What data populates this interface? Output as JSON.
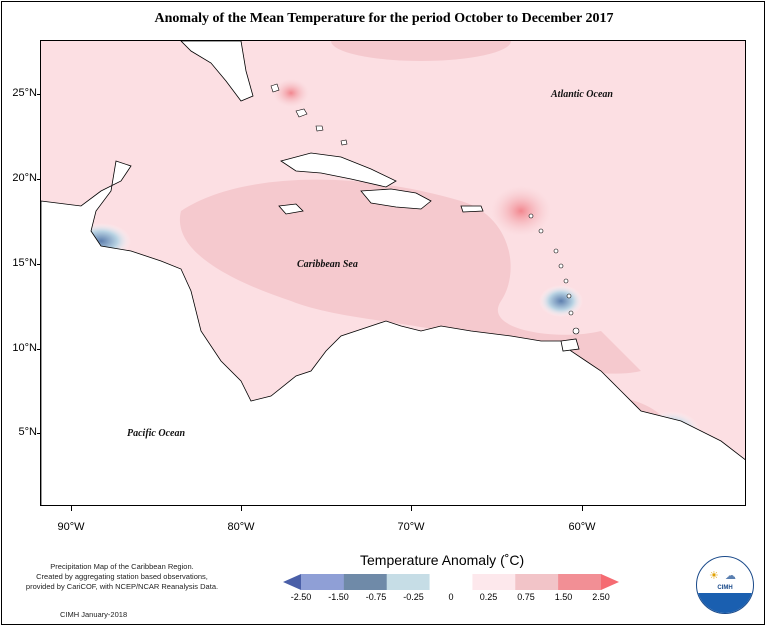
{
  "title": "Anomaly of the Mean Temperature for the period October to December 2017",
  "axes": {
    "lat_labels": [
      "25°N",
      "20°N",
      "15°N",
      "10°N",
      "5°N"
    ],
    "lon_labels": [
      "90°W",
      "80°W",
      "70°W",
      "60°W"
    ]
  },
  "map_labels": {
    "atlantic": "Atlantic Ocean",
    "caribbean": "Caribbean Sea",
    "pacific": "Pacific Ocean"
  },
  "credits": {
    "line1": "Precipitation Map of the Caribbean Region.",
    "line2": "Created by aggregating station based observations,",
    "line3": "provided by CariCOF, with NCEP/NCAR Reanalysis Data.",
    "date": "CIMH January-2018"
  },
  "legend": {
    "title": "Temperature Anomaly (˚C)",
    "labels": [
      "-2.50",
      "-1.50",
      "-0.75",
      "-0.25",
      "0",
      "0.25",
      "0.75",
      "1.50",
      "2.50"
    ],
    "colors": [
      "#4a5fa8",
      "#8f9fd6",
      "#6f8aa8",
      "#c6dde6",
      "#ffffff",
      "#fde8ec",
      "#f2c4c8",
      "#f28f95",
      "#f56b72"
    ]
  },
  "logo": {
    "text": "CIMH"
  },
  "colors": {
    "sea_base": "#fcdfe3",
    "warm_zone": "#f5c9ce",
    "hot_spot": "#f39097",
    "cool_spot": "#7f9cc0",
    "land": "#ffffff",
    "coast": "#000000"
  }
}
